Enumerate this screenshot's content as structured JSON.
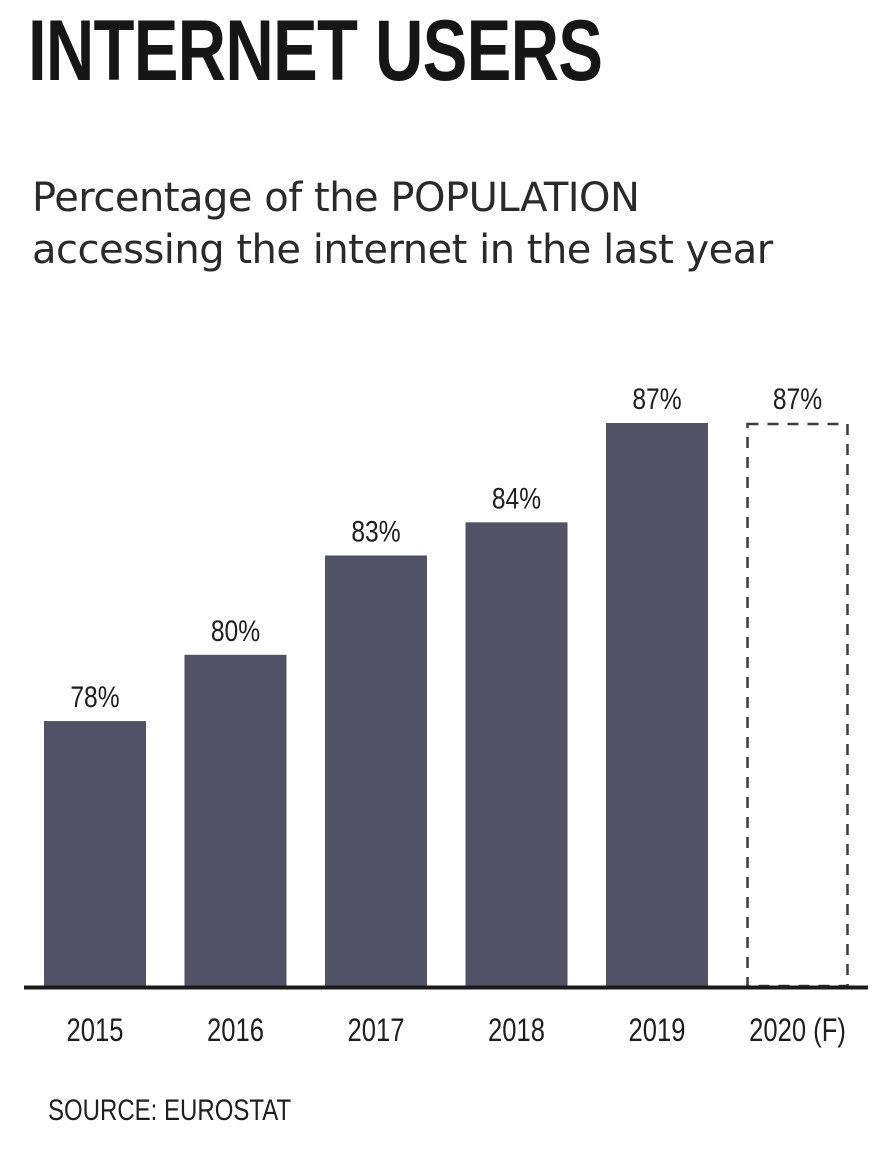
{
  "title": "INTERNET USERS",
  "subtitle_line1": "Percentage of the POPULATION",
  "subtitle_line2": "accessing the internet in the last year",
  "source": "SOURCE: EUROSTAT",
  "colors": {
    "bar": "#515266",
    "forecast_outline": "#3a3a3a",
    "axis": "#1a1a1a"
  },
  "chart_data": {
    "type": "bar",
    "categories": [
      "2015",
      "2016",
      "2017",
      "2018",
      "2019",
      "2020 (F)"
    ],
    "values": [
      78,
      80,
      83,
      84,
      87,
      87
    ],
    "data_labels": [
      "78%",
      "80%",
      "83%",
      "84%",
      "87%",
      "87%"
    ],
    "forecast": [
      false,
      false,
      false,
      false,
      false,
      true
    ],
    "ylim": [
      70,
      87
    ],
    "grid": false,
    "legend": "none"
  }
}
